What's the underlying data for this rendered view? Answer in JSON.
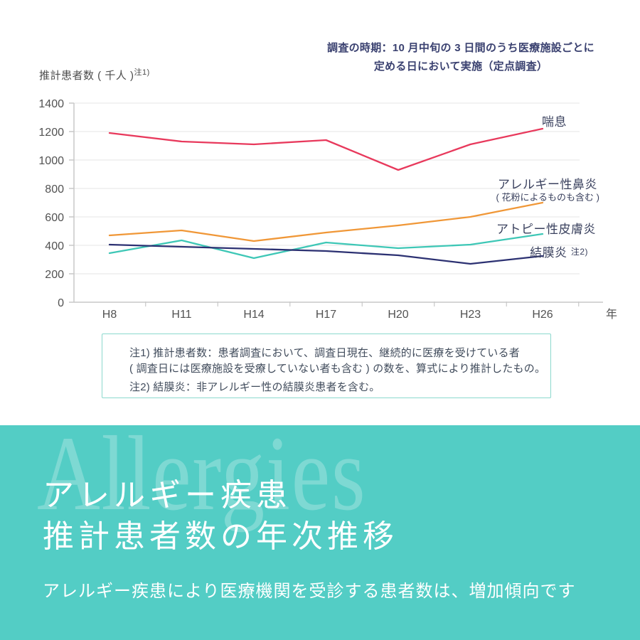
{
  "survey_note": {
    "line1": "調査の時期：10 月中旬の 3 日間のうち医療施設ごとに",
    "line2": "定める日において実施（定点調査）"
  },
  "y_axis": {
    "title": "推計患者数 ( 千人 )",
    "title_sup": "注1)"
  },
  "x_axis": {
    "unit_label": "年"
  },
  "chart_data": {
    "type": "line",
    "title": "アレルギー疾患推計患者数の年次推移",
    "categories": [
      "H8",
      "H11",
      "H14",
      "H17",
      "H20",
      "H23",
      "H26"
    ],
    "xlabel": "年",
    "ylabel": "推計患者数（千人）",
    "ylim": [
      0,
      1400
    ],
    "ytick_step": 200,
    "grid": true,
    "legend_position": "right-inline",
    "series": [
      {
        "name": "喘息",
        "color": "#e8395c",
        "values": [
          1190,
          1130,
          1110,
          1140,
          930,
          1110,
          1220
        ]
      },
      {
        "name": "アレルギー性鼻炎",
        "subtitle": "( 花粉によるものも含む )",
        "color": "#f09737",
        "values": [
          470,
          505,
          430,
          490,
          540,
          600,
          700
        ]
      },
      {
        "name": "アトピー性皮膚炎",
        "color": "#3ec7b6",
        "values": [
          345,
          435,
          310,
          420,
          380,
          405,
          480
        ]
      },
      {
        "name": "結膜炎",
        "name_sup": "注2)",
        "color": "#2c3172",
        "values": [
          405,
          390,
          375,
          360,
          330,
          270,
          325
        ]
      }
    ]
  },
  "notes": {
    "line1": "注1) 推計患者数：患者調査において、調査日現在、継続的に医療を受けている者",
    "line2": "( 調査日には医療施設を受療していない者も含む ) の数を、算式により推計したもの。",
    "line3": "注2) 結膜炎：非アレルギー性の結膜炎患者を含む。"
  },
  "footer": {
    "watermark": "Allergies",
    "title_line1": "アレルギー疾患",
    "title_line2": "推計患者数の年次推移",
    "subtitle": "アレルギー疾患により医療機関を受診する患者数は、増加傾向です",
    "bg_color": "#53cdc5"
  }
}
